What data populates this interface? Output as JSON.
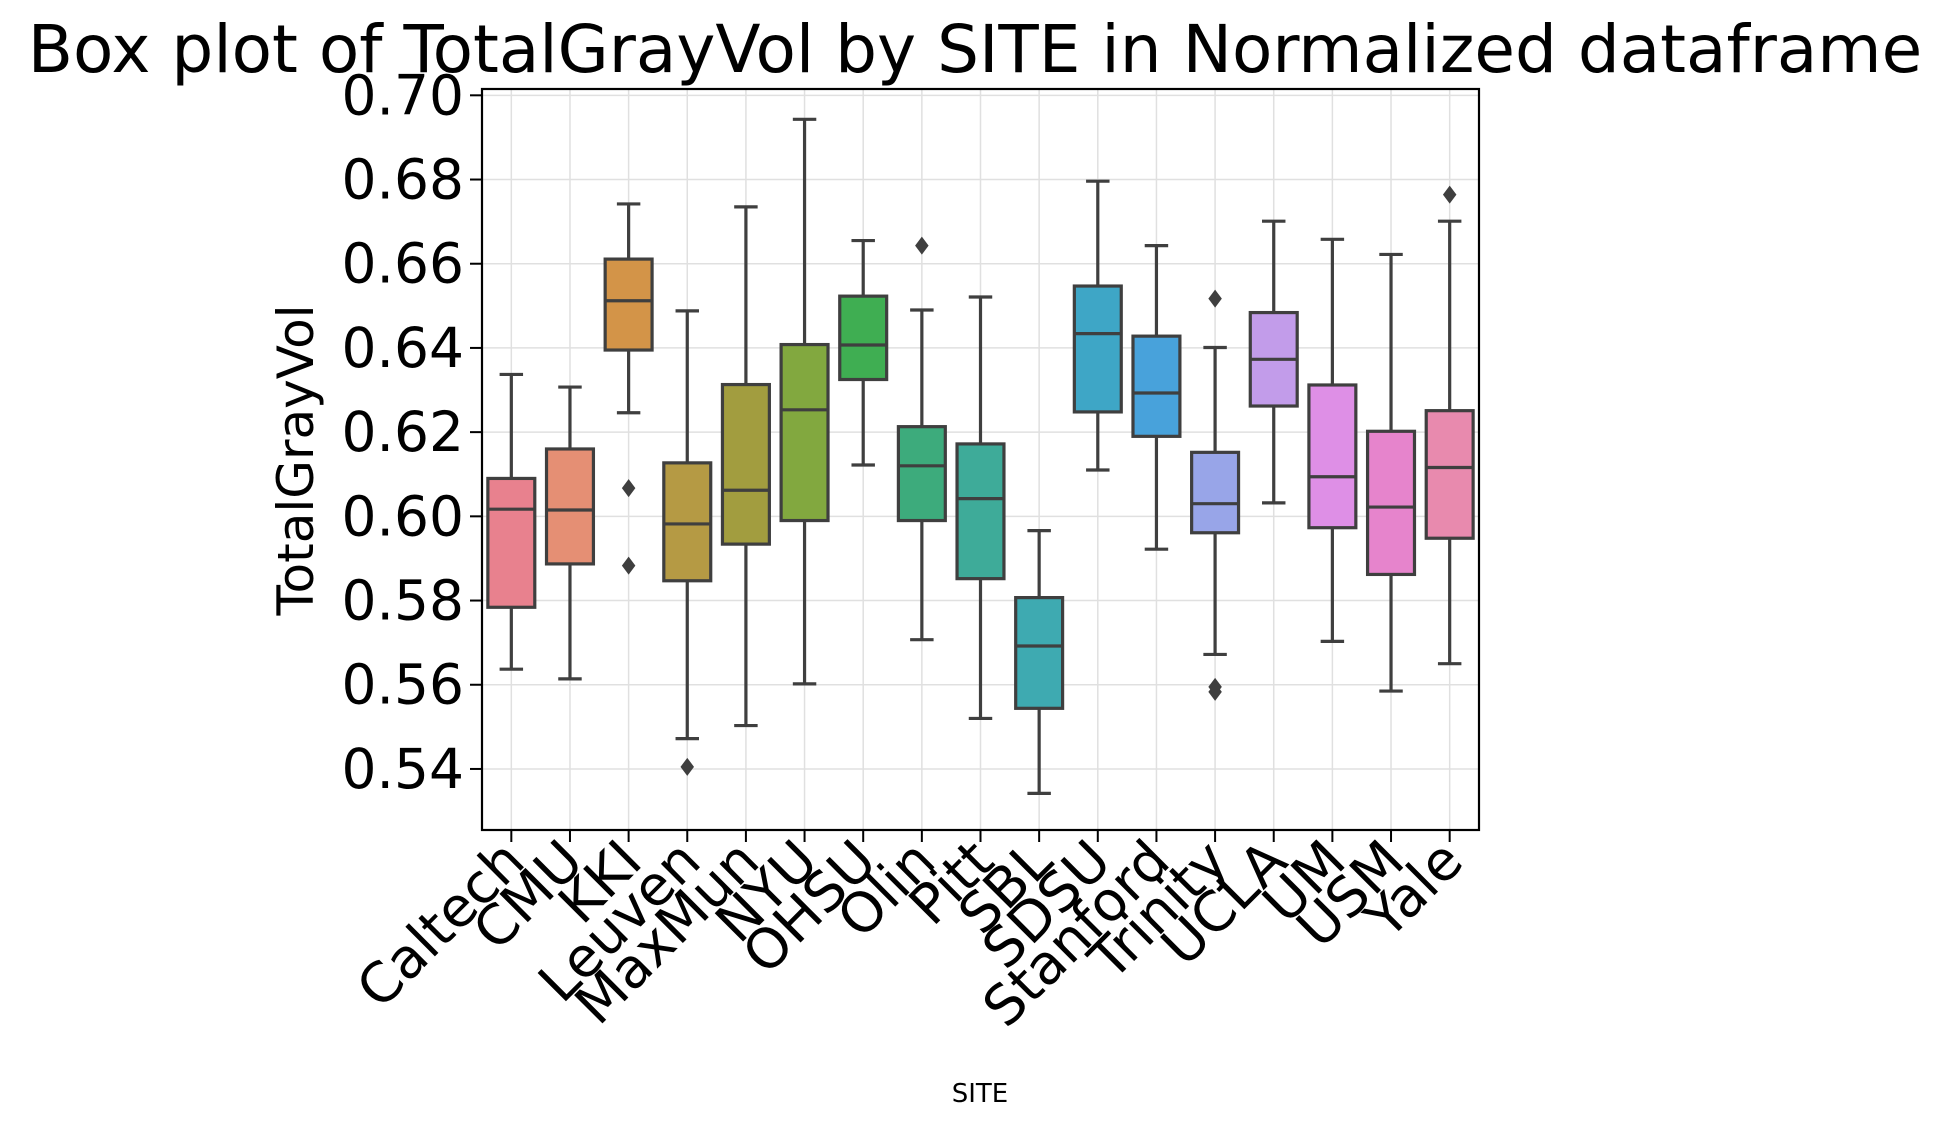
{
  "chart_data": {
    "type": "box",
    "title": "Box plot of TotalGrayVol by SITE in Normalized dataframe",
    "xlabel": "SITE",
    "ylabel": "TotalGrayVol",
    "ylim": [
      0.5255,
      0.7015
    ],
    "yticks": [
      0.54,
      0.56,
      0.58,
      0.6,
      0.62,
      0.64,
      0.66,
      0.68,
      0.7
    ],
    "ytick_labels": [
      "0.54",
      "0.56",
      "0.58",
      "0.60",
      "0.62",
      "0.64",
      "0.66",
      "0.68",
      "0.70"
    ],
    "grid": true,
    "categories": [
      "Caltech",
      "CMU",
      "KKI",
      "Leuven",
      "MaxMun",
      "NYU",
      "OHSU",
      "Olin",
      "Pitt",
      "SBL",
      "SDSU",
      "Stanford",
      "Trinity",
      "UCLA",
      "UM",
      "USM",
      "Yale"
    ],
    "colors": [
      "#e8818e",
      "#e58f74",
      "#d39448",
      "#b59a44",
      "#a29d3f",
      "#82a83f",
      "#3fae52",
      "#3dab7c",
      "#3eab99",
      "#3eaab1",
      "#3ea6c6",
      "#48a2db",
      "#98a5e8",
      "#c29cea",
      "#de8fe6",
      "#e684cc",
      "#e88aae"
    ],
    "boxes": [
      {
        "site": "Caltech",
        "whisker_low": 0.5637,
        "q1": 0.5784,
        "median": 0.6017,
        "q3": 0.609,
        "whisker_high": 0.6337,
        "outliers": []
      },
      {
        "site": "CMU",
        "whisker_low": 0.5614,
        "q1": 0.5887,
        "median": 0.6015,
        "q3": 0.616,
        "whisker_high": 0.6307,
        "outliers": []
      },
      {
        "site": "KKI",
        "whisker_low": 0.6246,
        "q1": 0.6395,
        "median": 0.6512,
        "q3": 0.6611,
        "whisker_high": 0.6742,
        "outliers": [
          0.6067,
          0.5883
        ]
      },
      {
        "site": "Leuven",
        "whisker_low": 0.5472,
        "q1": 0.5847,
        "median": 0.5982,
        "q3": 0.6127,
        "whisker_high": 0.6488,
        "outliers": [
          0.5405
        ]
      },
      {
        "site": "MaxMun",
        "whisker_low": 0.5503,
        "q1": 0.5934,
        "median": 0.6062,
        "q3": 0.6313,
        "whisker_high": 0.6735,
        "outliers": []
      },
      {
        "site": "NYU",
        "whisker_low": 0.5602,
        "q1": 0.599,
        "median": 0.6253,
        "q3": 0.6408,
        "whisker_high": 0.6943,
        "outliers": []
      },
      {
        "site": "OHSU",
        "whisker_low": 0.6122,
        "q1": 0.6325,
        "median": 0.6407,
        "q3": 0.6523,
        "whisker_high": 0.6655,
        "outliers": []
      },
      {
        "site": "Olin",
        "whisker_low": 0.5707,
        "q1": 0.599,
        "median": 0.612,
        "q3": 0.6213,
        "whisker_high": 0.649,
        "outliers": [
          0.6643
        ]
      },
      {
        "site": "Pitt",
        "whisker_low": 0.552,
        "q1": 0.5852,
        "median": 0.6042,
        "q3": 0.6172,
        "whisker_high": 0.6521,
        "outliers": []
      },
      {
        "site": "SBL",
        "whisker_low": 0.5342,
        "q1": 0.5544,
        "median": 0.5692,
        "q3": 0.5807,
        "whisker_high": 0.5966,
        "outliers": []
      },
      {
        "site": "SDSU",
        "whisker_low": 0.611,
        "q1": 0.6248,
        "median": 0.6434,
        "q3": 0.6547,
        "whisker_high": 0.6796,
        "outliers": []
      },
      {
        "site": "Stanford",
        "whisker_low": 0.5922,
        "q1": 0.619,
        "median": 0.6293,
        "q3": 0.6428,
        "whisker_high": 0.6643,
        "outliers": []
      },
      {
        "site": "Trinity",
        "whisker_low": 0.5672,
        "q1": 0.5961,
        "median": 0.603,
        "q3": 0.6152,
        "whisker_high": 0.6401,
        "outliers": [
          0.6517,
          0.5595,
          0.5583
        ]
      },
      {
        "site": "UCLA",
        "whisker_low": 0.6032,
        "q1": 0.6262,
        "median": 0.6373,
        "q3": 0.6484,
        "whisker_high": 0.6701,
        "outliers": []
      },
      {
        "site": "UM",
        "whisker_low": 0.5703,
        "q1": 0.5973,
        "median": 0.6094,
        "q3": 0.6312,
        "whisker_high": 0.6658,
        "outliers": []
      },
      {
        "site": "USM",
        "whisker_low": 0.5585,
        "q1": 0.5862,
        "median": 0.6022,
        "q3": 0.6202,
        "whisker_high": 0.6622,
        "outliers": []
      },
      {
        "site": "Yale",
        "whisker_low": 0.565,
        "q1": 0.5948,
        "median": 0.6116,
        "q3": 0.6251,
        "whisker_high": 0.6701,
        "outliers": [
          0.6764
        ]
      }
    ]
  }
}
